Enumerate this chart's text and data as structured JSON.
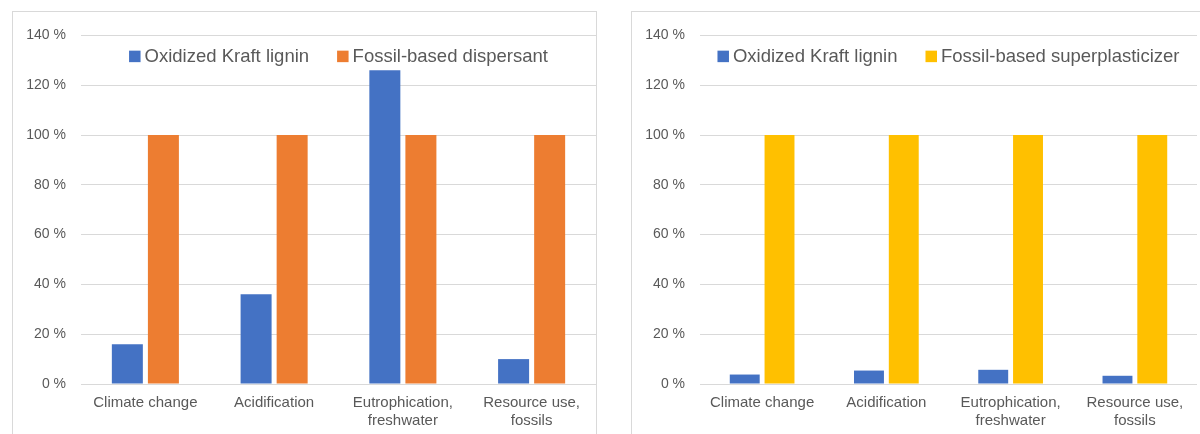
{
  "chart_data": [
    {
      "type": "bar",
      "categories": [
        "Climate change",
        "Acidification",
        "Eutrophication, freshwater",
        "Resource use, fossils"
      ],
      "series": [
        {
          "name": "Oxidized Kraft lignin",
          "color": "#4472c4",
          "values": [
            16,
            36,
            126,
            10
          ]
        },
        {
          "name": "Fossil-based dispersant",
          "color": "#ed7d31",
          "values": [
            100,
            100,
            100,
            100
          ]
        }
      ],
      "ylim": [
        0,
        140
      ],
      "yticks": [
        {
          "value": 0,
          "label": "0 %"
        },
        {
          "value": 20,
          "label": "20 %"
        },
        {
          "value": 40,
          "label": "40 %"
        },
        {
          "value": 60,
          "label": "60 %"
        },
        {
          "value": 80,
          "label": "80 %"
        },
        {
          "value": 100,
          "label": "100 %"
        },
        {
          "value": 120,
          "label": "120 %"
        },
        {
          "value": 140,
          "label": "140 %"
        }
      ],
      "grid": "y",
      "legend": "top"
    },
    {
      "type": "bar",
      "categories": [
        "Climate change",
        "Acidification",
        "Eutrophication, freshwater",
        "Resource use, fossils"
      ],
      "series": [
        {
          "name": "Oxidized Kraft lignin",
          "color": "#4472c4",
          "values": [
            3.8,
            5.4,
            5.7,
            3.3
          ]
        },
        {
          "name": "Fossil-based superplasticizer",
          "color": "#ffc000",
          "values": [
            100,
            100,
            100,
            100
          ]
        }
      ],
      "ylim": [
        0,
        140
      ],
      "yticks": [
        {
          "value": 0,
          "label": "0 %"
        },
        {
          "value": 20,
          "label": "20 %"
        },
        {
          "value": 40,
          "label": "40 %"
        },
        {
          "value": 60,
          "label": "60 %"
        },
        {
          "value": 80,
          "label": "80 %"
        },
        {
          "value": 100,
          "label": "100 %"
        },
        {
          "value": 120,
          "label": "120 %"
        },
        {
          "value": 140,
          "label": "140 %"
        }
      ],
      "grid": "y",
      "legend": "top"
    }
  ]
}
